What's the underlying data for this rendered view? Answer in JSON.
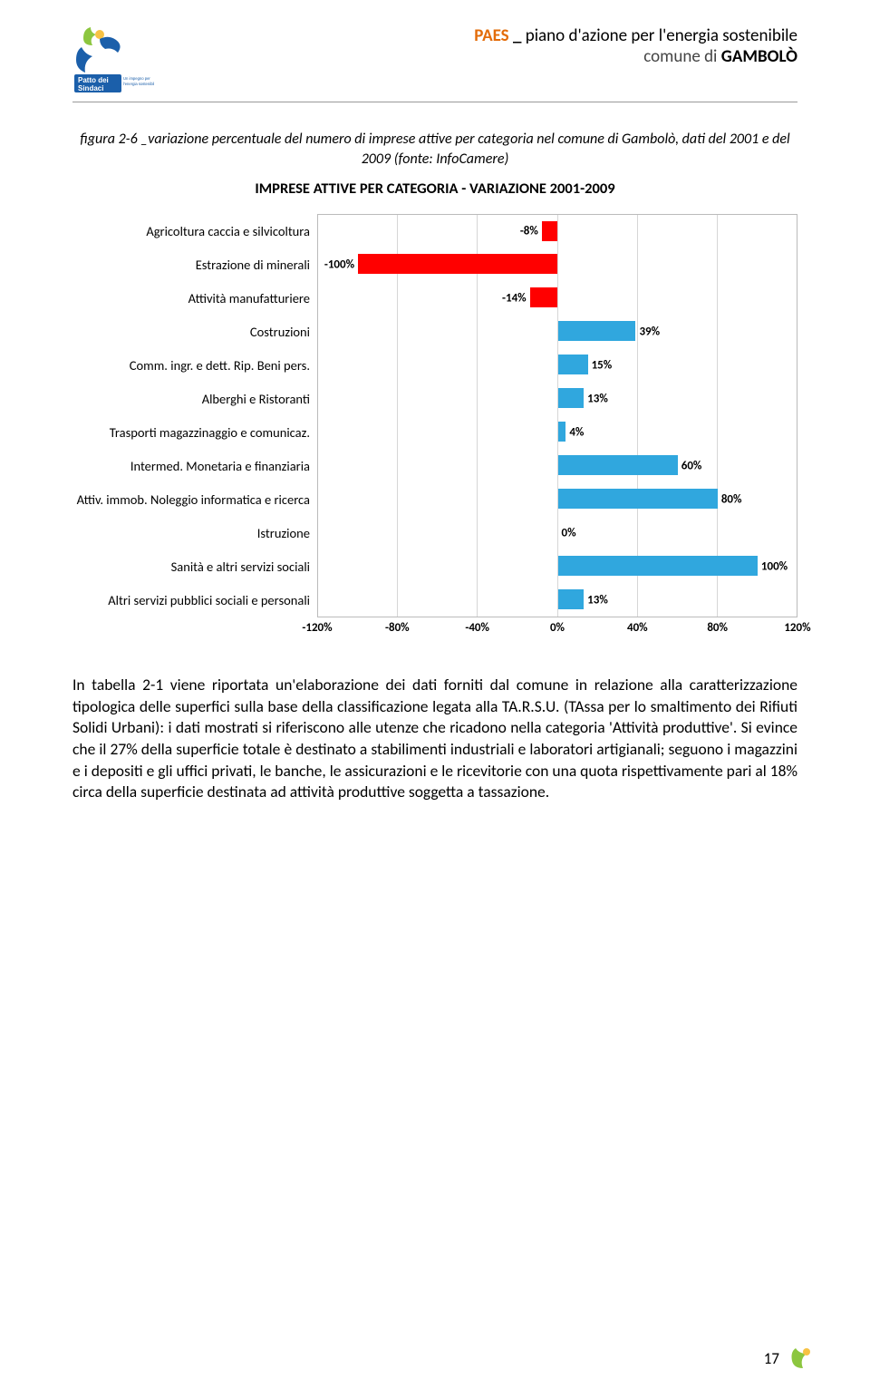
{
  "header": {
    "doc_acronym": "PAES",
    "doc_underscore": "_",
    "doc_title_rest": "piano d'azione per l'energia sostenibile",
    "subtitle_prefix": "comune di ",
    "subtitle_bold": "GAMBOLÒ",
    "accent_color": "#e36c0a",
    "logo": {
      "top_text": "Patto dei",
      "bottom_text": "Sindaci",
      "tagline": "Un impegno per l'energia sostenibile"
    }
  },
  "figure": {
    "caption": "figura 2-6 _variazione percentuale del numero di imprese attive per categoria nel comune di Gambolò, dati del 2001 e del 2009 (fonte: InfoCamere)",
    "chart_title": "IMPRESE ATTIVE PER CATEGORIA - VARIAZIONE 2001-2009"
  },
  "chart": {
    "type": "bar-horizontal",
    "xmin": -120,
    "xmax": 120,
    "xtick_step": 40,
    "xticks": [
      "-120%",
      "-80%",
      "-40%",
      "0%",
      "40%",
      "80%",
      "120%"
    ],
    "neg_color": "#ff0000",
    "pos_color": "#30a7de",
    "grid_color": "#d6d6d6",
    "label_fontsize": 14.5,
    "value_fontsize": 13,
    "rows": [
      {
        "label": "Agricoltura caccia e silvicoltura",
        "value": -8,
        "value_label": "-8%"
      },
      {
        "label": "Estrazione di minerali",
        "value": -100,
        "value_label": "-100%"
      },
      {
        "label": "Attività manufatturiere",
        "value": -14,
        "value_label": "-14%"
      },
      {
        "label": "Costruzioni",
        "value": 39,
        "value_label": "39%"
      },
      {
        "label": "Comm. ingr. e dett. Rip. Beni pers.",
        "value": 15,
        "value_label": "15%"
      },
      {
        "label": "Alberghi e Ristoranti",
        "value": 13,
        "value_label": "13%"
      },
      {
        "label": "Trasporti magazzinaggio e comunicaz.",
        "value": 4,
        "value_label": "4%"
      },
      {
        "label": "Intermed. Monetaria e finanziaria",
        "value": 60,
        "value_label": "60%"
      },
      {
        "label": "Attiv. immob. Noleggio informatica e ricerca",
        "value": 80,
        "value_label": "80%"
      },
      {
        "label": "Istruzione",
        "value": 0,
        "value_label": "0%"
      },
      {
        "label": "Sanità e altri servizi sociali",
        "value": 100,
        "value_label": "100%"
      },
      {
        "label": "Altri servizi pubblici sociali e personali",
        "value": 13,
        "value_label": "13%"
      }
    ]
  },
  "body": {
    "paragraph": "In tabella 2-1 viene riportata un'elaborazione dei dati forniti dal comune in relazione alla caratterizzazione tipologica delle superfici sulla base della classificazione legata alla TA.R.S.U. (TAssa per lo smaltimento dei Rifiuti Solidi Urbani): i dati mostrati si riferiscono alle utenze che ricadono nella categoria 'Attività produttive'. Si evince che il 27% della superficie totale è destinato a stabilimenti industriali e laboratori artigianali; seguono i magazzini e i depositi e gli uffici privati, le banche, le assicurazioni e le ricevitorie con una quota rispettivamente pari al 18% circa della superficie destinata ad attività produttive soggetta a tassazione."
  },
  "footer": {
    "page_number": "17"
  }
}
